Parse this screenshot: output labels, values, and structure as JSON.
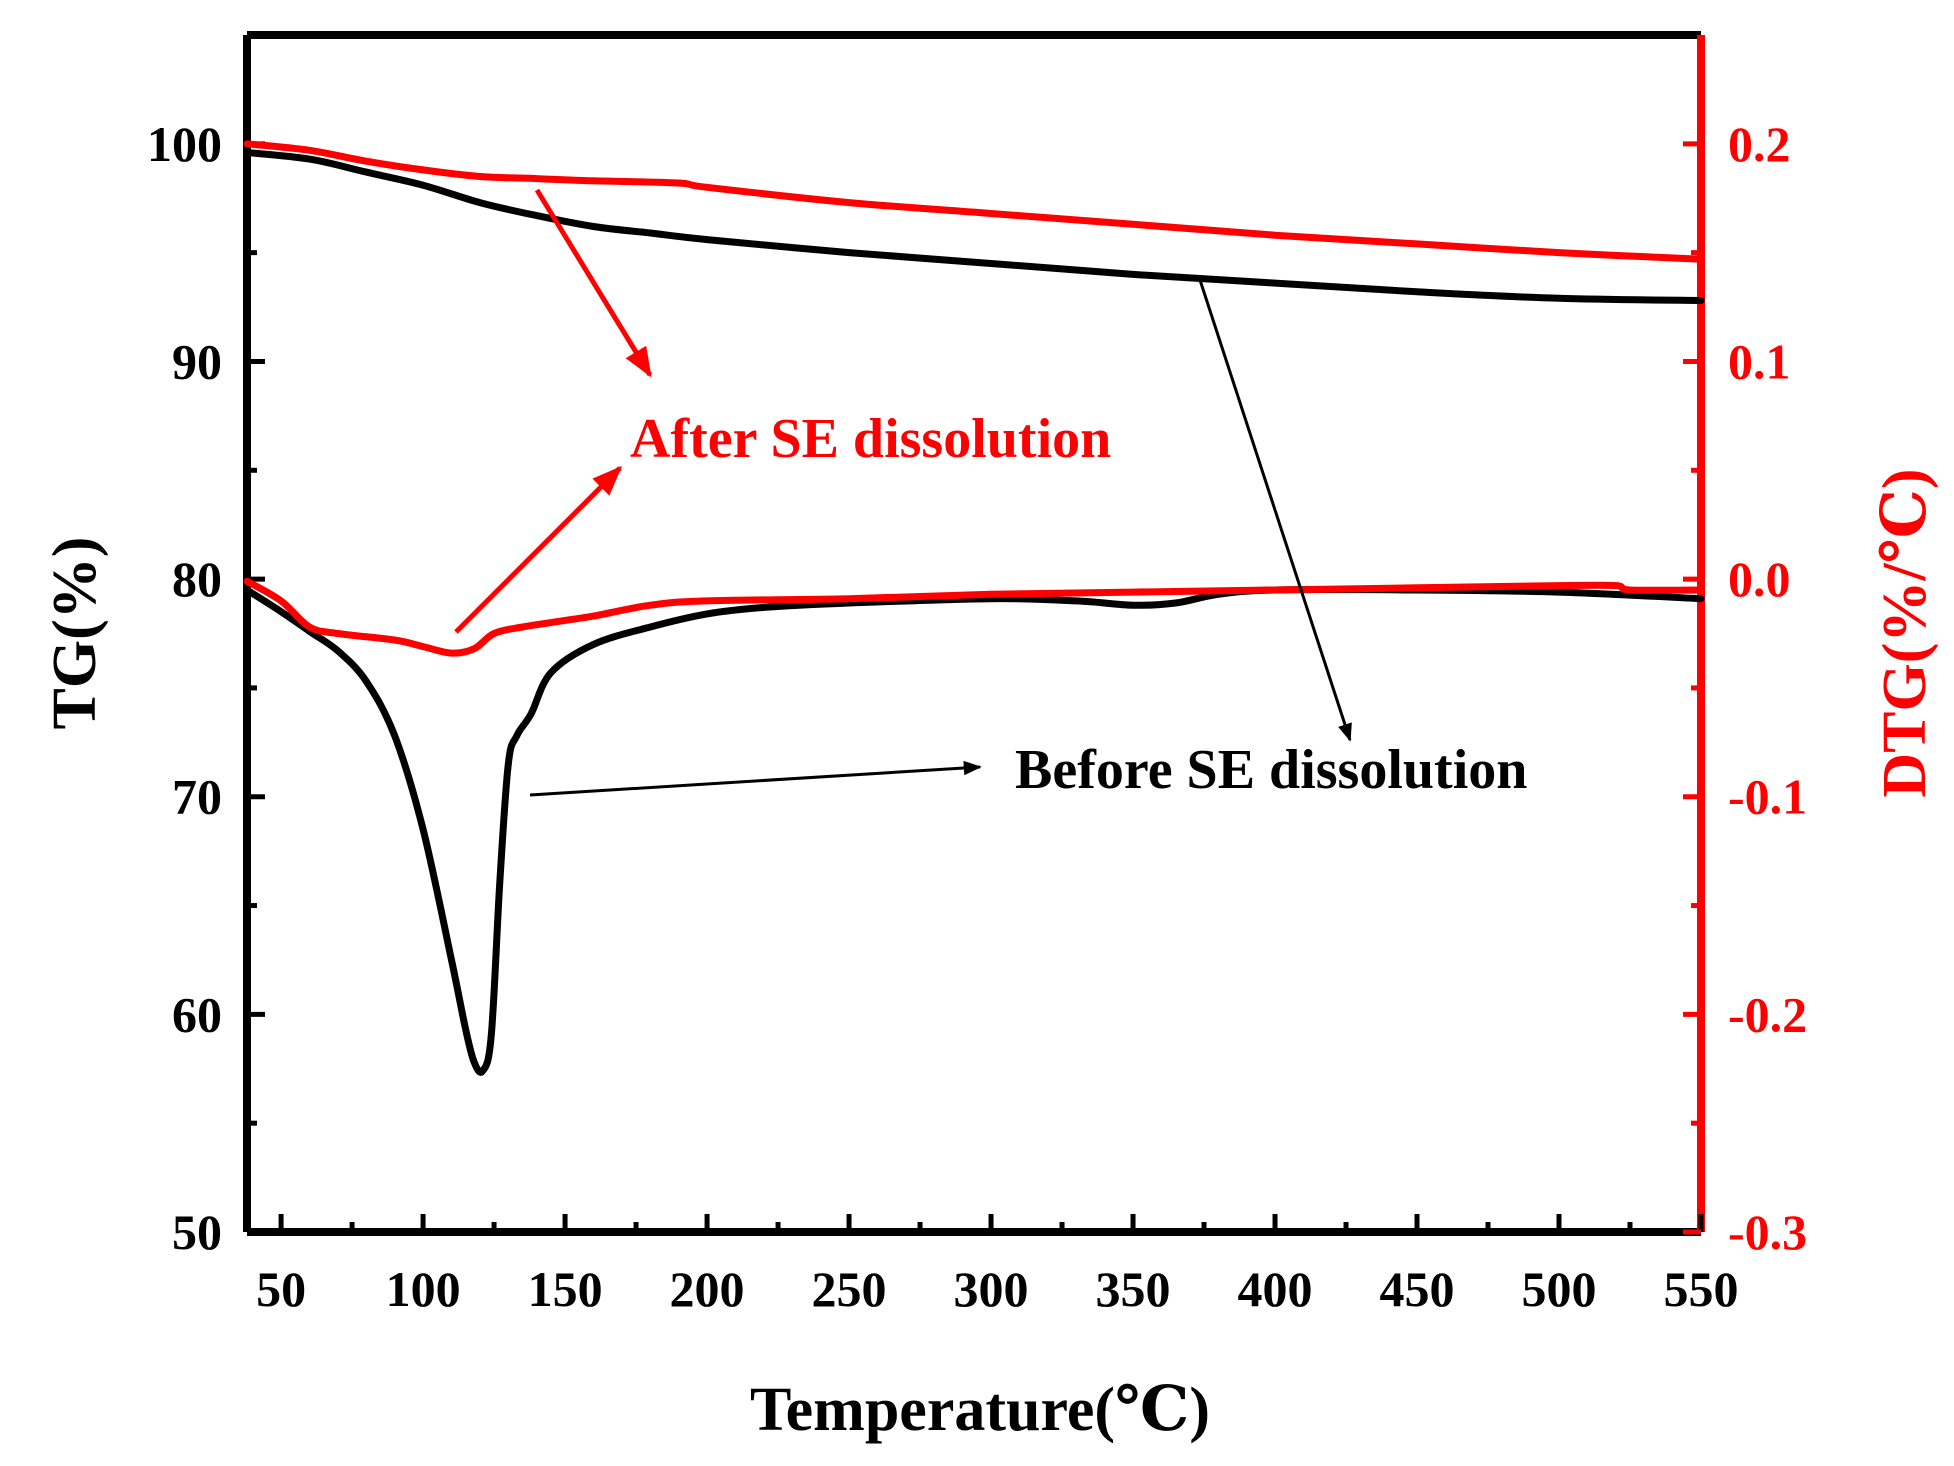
{
  "chart_data": {
    "type": "line",
    "title": "",
    "xlabel": "Temperature(℃)",
    "ylabel_left": "TG(%)",
    "ylabel_right": "DTG(%/℃)",
    "xlim": [
      38,
      550
    ],
    "ylim_left": [
      50,
      105
    ],
    "ylim_right": [
      -0.3,
      0.25
    ],
    "x_ticks": [
      50,
      100,
      150,
      200,
      250,
      300,
      350,
      400,
      450,
      500,
      550
    ],
    "x_tick_labels": [
      "50",
      "100",
      "150",
      "200",
      "250",
      "300",
      "350",
      "400",
      "450",
      "500",
      "550"
    ],
    "y_left_ticks": [
      50,
      60,
      70,
      80,
      90,
      100
    ],
    "y_left_tick_labels": [
      "50",
      "60",
      "70",
      "80",
      "90",
      "100"
    ],
    "y_right_ticks": [
      -0.3,
      -0.2,
      -0.1,
      0.0,
      0.1,
      0.2
    ],
    "y_right_tick_labels": [
      "-0.3",
      "-0.2",
      "-0.1",
      "0.0",
      "0.1",
      "0.2"
    ],
    "colors": {
      "before": "#000000",
      "after": "#ff0000",
      "axis_left": "#000000",
      "axis_right": "#ff0000"
    },
    "series": [
      {
        "name": "TG Before SE dissolution",
        "axis": "left",
        "color": "#000000",
        "x": [
          38,
          60,
          80,
          100,
          120,
          140,
          160,
          180,
          200,
          250,
          300,
          350,
          400,
          450,
          500,
          550
        ],
        "y": [
          99.6,
          99.3,
          98.7,
          98.1,
          97.3,
          96.7,
          96.2,
          95.9,
          95.6,
          95.0,
          94.5,
          94.0,
          93.6,
          93.2,
          92.9,
          92.8
        ]
      },
      {
        "name": "TG After SE dissolution",
        "axis": "left",
        "color": "#ff0000",
        "x": [
          38,
          60,
          80,
          100,
          120,
          140,
          160,
          190,
          200,
          250,
          300,
          350,
          400,
          450,
          500,
          550
        ],
        "y": [
          100.0,
          99.7,
          99.2,
          98.8,
          98.5,
          98.4,
          98.3,
          98.2,
          98.0,
          97.3,
          96.8,
          96.3,
          95.8,
          95.4,
          95.0,
          94.7
        ]
      },
      {
        "name": "DTG Before SE dissolution",
        "axis": "right",
        "color": "#000000",
        "x": [
          38,
          50,
          60,
          70,
          80,
          90,
          100,
          110,
          115,
          118,
          121,
          124,
          127,
          130,
          133,
          138,
          145,
          160,
          180,
          200,
          220,
          250,
          300,
          330,
          350,
          365,
          380,
          400,
          450,
          500,
          550
        ],
        "y": [
          -0.005,
          -0.015,
          -0.024,
          -0.033,
          -0.047,
          -0.072,
          -0.115,
          -0.175,
          -0.207,
          -0.222,
          -0.226,
          -0.21,
          -0.14,
          -0.085,
          -0.072,
          -0.062,
          -0.043,
          -0.03,
          -0.022,
          -0.016,
          -0.013,
          -0.011,
          -0.009,
          -0.01,
          -0.012,
          -0.011,
          -0.007,
          -0.005,
          -0.005,
          -0.006,
          -0.009
        ]
      },
      {
        "name": "DTG After SE dissolution",
        "axis": "right",
        "color": "#ff0000",
        "x": [
          38,
          50,
          60,
          70,
          90,
          100,
          110,
          118,
          125,
          135,
          150,
          160,
          180,
          200,
          250,
          300,
          350,
          400,
          450,
          500,
          520,
          525,
          550
        ],
        "y": [
          -0.001,
          -0.01,
          -0.022,
          -0.025,
          -0.028,
          -0.031,
          -0.034,
          -0.032,
          -0.025,
          -0.022,
          -0.019,
          -0.017,
          -0.012,
          -0.01,
          -0.009,
          -0.007,
          -0.006,
          -0.005,
          -0.004,
          -0.003,
          -0.003,
          -0.005,
          -0.005
        ]
      }
    ],
    "annotations": [
      {
        "text": "After SE dissolution",
        "color": "#ff0000"
      },
      {
        "text": "Before SE dissolution",
        "color": "#000000"
      }
    ]
  }
}
